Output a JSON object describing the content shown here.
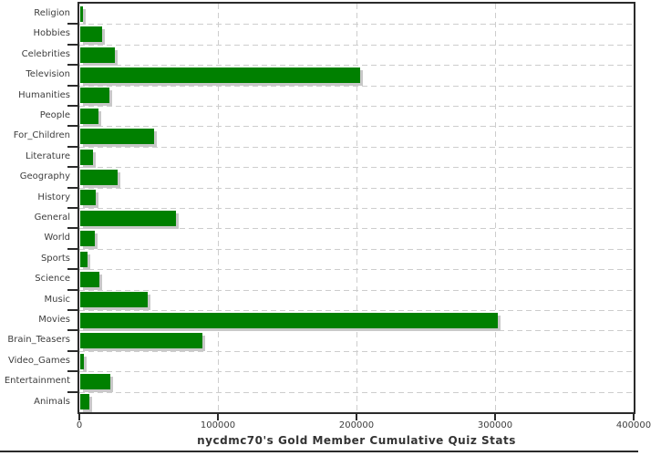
{
  "chart_data": {
    "type": "bar",
    "orientation": "horizontal",
    "title": "nycdmc70's Gold Member Cumulative Quiz Stats",
    "categories": [
      "Religion",
      "Hobbies",
      "Celebrities",
      "Television",
      "Humanities",
      "People",
      "For_Children",
      "Literature",
      "Geography",
      "History",
      "General",
      "World",
      "Sports",
      "Science",
      "Music",
      "Movies",
      "Brain_Teasers",
      "Video_Games",
      "Entertainment",
      "Animals"
    ],
    "values": [
      2000,
      16000,
      25000,
      202000,
      21000,
      13000,
      53500,
      9000,
      27000,
      11000,
      69000,
      10500,
      5500,
      14000,
      49000,
      301000,
      88000,
      2500,
      21500,
      6800
    ],
    "xlim": [
      0,
      400000
    ],
    "x_ticks": [
      0,
      100000,
      200000,
      300000,
      400000
    ],
    "x_tick_labels": [
      "0",
      "100000",
      "200000",
      "300000",
      "400000"
    ],
    "grid": true,
    "legend": "none",
    "colors": {
      "bar_fill": "#008000",
      "bar_shadow": "#c8c8c8",
      "gridline": "#cdcdcd",
      "axis": "#2b2b2b",
      "text": "#3d3d3d",
      "title_text": "#333333"
    }
  }
}
